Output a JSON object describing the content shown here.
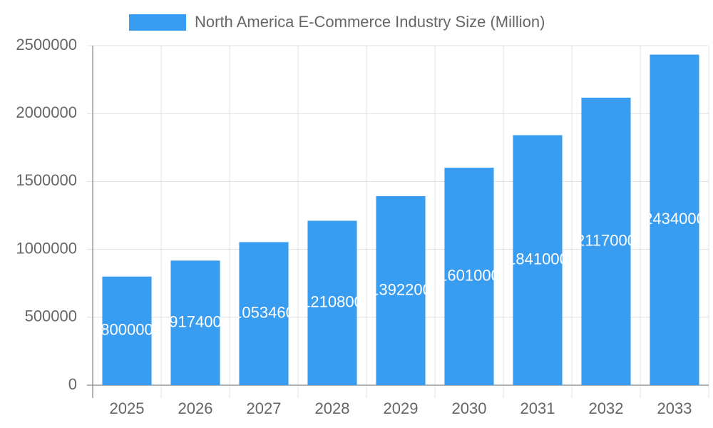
{
  "chart_data": {
    "type": "bar",
    "series": [
      {
        "name": "North America E-Commerce Industry Size (Million)",
        "color": "#389cf0",
        "values": [
          800000,
          917400,
          1053460,
          1210800,
          1392200,
          1601000,
          1841000,
          2117000,
          2434000
        ]
      }
    ],
    "categories": [
      "2025",
      "2026",
      "2027",
      "2028",
      "2029",
      "2030",
      "2031",
      "2032",
      "2033"
    ],
    "ylim": [
      0,
      2500000
    ],
    "yticks": [
      0,
      500000,
      1000000,
      1500000,
      2000000,
      2500000
    ],
    "grid": true
  }
}
